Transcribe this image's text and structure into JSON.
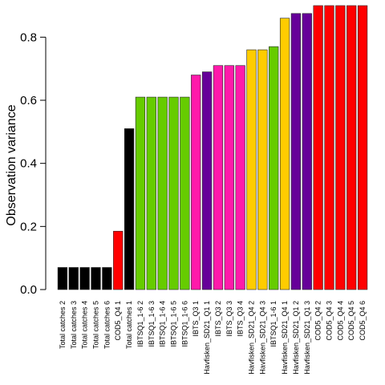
{
  "chart_data": {
    "type": "bar",
    "title": "",
    "xlabel": "",
    "ylabel": "Observation variance",
    "ylim": [
      0,
      0.9
    ],
    "yticks": [
      "0.0",
      "0.2",
      "0.4",
      "0.6",
      "0.8"
    ],
    "grid": false,
    "legend": "none",
    "categories": [
      "Total catches 2",
      "Total catches 3",
      "Total catches 4",
      "Total catches 5",
      "Total catches 6",
      "COD5_Q4 1",
      "Total catches 1",
      "IBTSQ1_1-6 2",
      "IBTSQ1_1-6 3",
      "IBTSQ1_1-6 4",
      "IBTSQ1_1-6 5",
      "IBTSQ1_1-6 6",
      "IBTS_Q3 1",
      "Havfisken_SD21_Q1 1",
      "IBTS_Q3 2",
      "IBTS_Q3 3",
      "IBTS_Q3 4",
      "Havfisken_SD21_Q4 2",
      "Havfisken_SD21_Q4 3",
      "IBTSQ1_1-6 1",
      "Havfisken_SD21_Q4 1",
      "Havfisken_SD21_Q1 2",
      "Havfisken_SD21_Q1 3",
      "COD5_Q4 2",
      "COD5_Q4 3",
      "COD5_Q4 4",
      "COD5_Q4 5",
      "COD5_Q4 6"
    ],
    "values": [
      0.07,
      0.07,
      0.07,
      0.07,
      0.07,
      0.185,
      0.51,
      0.61,
      0.61,
      0.61,
      0.61,
      0.61,
      0.68,
      0.69,
      0.71,
      0.71,
      0.71,
      0.76,
      0.76,
      0.77,
      0.86,
      0.875,
      0.875,
      0.9,
      0.9,
      0.9,
      0.9,
      0.9
    ],
    "colors": [
      "#000000",
      "#000000",
      "#000000",
      "#000000",
      "#000000",
      "#ff0000",
      "#000000",
      "#66cc00",
      "#66cc00",
      "#66cc00",
      "#66cc00",
      "#66cc00",
      "#ff1aaa",
      "#660099",
      "#ff1aaa",
      "#ff1aaa",
      "#ff1aaa",
      "#ffcc00",
      "#ffcc00",
      "#66cc00",
      "#ffcc00",
      "#660099",
      "#660099",
      "#ff0000",
      "#ff0000",
      "#ff0000",
      "#ff0000",
      "#ff0000"
    ]
  }
}
